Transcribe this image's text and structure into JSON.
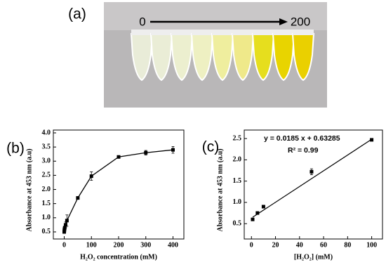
{
  "photo": {
    "panel_label": "(a)",
    "start_label": "0",
    "end_label": "200"
  },
  "chart_data": [
    {
      "type": "line",
      "panel_label": "(b)",
      "xlabel": "H₂O₂ concentration (mM)",
      "ylabel": "Absorbance at 453 nm (a.u)",
      "x": [
        0,
        0.5,
        1,
        2,
        5,
        10,
        50,
        100,
        200,
        300,
        400
      ],
      "values": [
        0.5,
        0.55,
        0.6,
        0.65,
        0.75,
        0.9,
        1.7,
        2.47,
        3.15,
        3.3,
        3.4
      ],
      "errors": [
        0.05,
        0.05,
        0.05,
        0.05,
        0.1,
        0.2,
        0.05,
        0.15,
        0.03,
        0.08,
        0.12
      ],
      "color": "#000000",
      "xlim": [
        -40,
        440
      ],
      "xticks": [
        0,
        100,
        200,
        300,
        400
      ],
      "ylim": [
        0.25,
        4.1
      ],
      "yticks": [
        0.5,
        {
          "value": 1,
          "label": "1.0"
        },
        1.5,
        {
          "value": 2,
          "label": "2.0"
        },
        2.5,
        {
          "value": 3,
          "label": "3.0"
        },
        3.5,
        {
          "value": 4,
          "label": "4.0"
        }
      ]
    },
    {
      "type": "scatter",
      "panel_label": "(c)",
      "xlabel": "[H₂O₂] (mM)",
      "ylabel": "Absorbance at 453 nm (a.u)",
      "x": [
        1,
        5,
        10,
        50,
        100
      ],
      "values": [
        0.6,
        0.75,
        0.9,
        1.72,
        2.47
      ],
      "errors": [
        0.02,
        0.03,
        0.03,
        0.07,
        0.02
      ],
      "color": "#000000",
      "fit": {
        "slope": 0.0185,
        "intercept": 0.63285
      },
      "annotations": [
        "y = 0.0185 x + 0.63285",
        "R² = 0.99"
      ],
      "xlim": [
        -6,
        109
      ],
      "xticks": [
        0,
        20,
        40,
        60,
        80,
        100
      ],
      "ylim": [
        0.14,
        2.7
      ],
      "yticks": [
        0.5,
        {
          "value": 1,
          "label": "1.0"
        },
        1.5,
        {
          "value": 2,
          "label": "2.0"
        },
        2.5
      ]
    }
  ]
}
